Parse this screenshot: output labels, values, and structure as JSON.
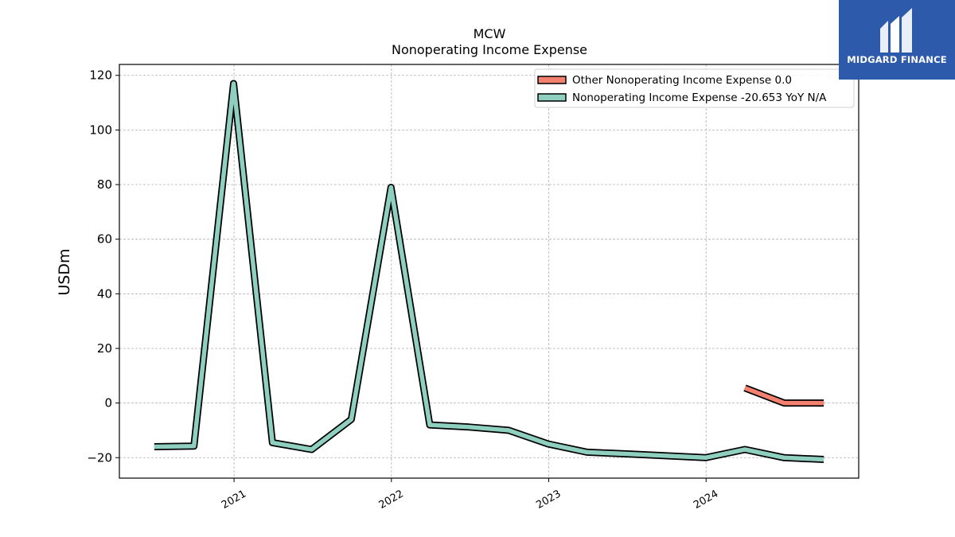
{
  "chart_data": {
    "type": "line",
    "title": "MCW",
    "subtitle": "Nonoperating Income Expense",
    "ylabel": "USDm",
    "ylim": [
      -27.5,
      124
    ],
    "xlim": [
      "2020-04-10",
      "2024-12-20"
    ],
    "yticks": [
      -20,
      0,
      20,
      40,
      60,
      80,
      100,
      120
    ],
    "yticklabels": [
      "−20",
      "0",
      "20",
      "40",
      "60",
      "80",
      "100",
      "120"
    ],
    "xticks": [
      "2021-01-01",
      "2022-01-01",
      "2023-01-01",
      "2024-01-01"
    ],
    "xticklabels": [
      "2021",
      "2022",
      "2023",
      "2024"
    ],
    "grid": true,
    "legend_position": "top-right",
    "series": [
      {
        "name": "Other Nonoperating Income Expense",
        "legend_label": "Other Nonoperating Income Expense  0.0",
        "color": "#f4806f",
        "points": [
          [
            "2024-03-31",
            5.5
          ],
          [
            "2024-06-30",
            0.0
          ],
          [
            "2024-09-30",
            0.0
          ]
        ]
      },
      {
        "name": "Nonoperating Income Expense",
        "legend_label": "Nonoperating Income Expense  -20.653 YoY N/A",
        "color": "#8ecfc0",
        "points": [
          [
            "2020-06-30",
            -16.0
          ],
          [
            "2020-09-30",
            -15.8
          ],
          [
            "2020-12-31",
            117.0
          ],
          [
            "2021-03-31",
            -14.5
          ],
          [
            "2021-06-30",
            -17.0
          ],
          [
            "2021-09-30",
            -6.0
          ],
          [
            "2021-12-31",
            79.0
          ],
          [
            "2022-03-31",
            -8.0
          ],
          [
            "2022-06-30",
            -8.8
          ],
          [
            "2022-09-30",
            -10.0
          ],
          [
            "2022-12-31",
            -15.0
          ],
          [
            "2023-03-31",
            -18.0
          ],
          [
            "2023-06-30",
            -18.6
          ],
          [
            "2023-09-30",
            -19.3
          ],
          [
            "2023-12-31",
            -20.0
          ],
          [
            "2024-03-31",
            -17.0
          ],
          [
            "2024-06-30",
            -20.0
          ],
          [
            "2024-09-30",
            -20.653
          ]
        ]
      }
    ]
  },
  "logo": {
    "text": "MIDGARD FINANCE",
    "background": "#2e5aac"
  }
}
